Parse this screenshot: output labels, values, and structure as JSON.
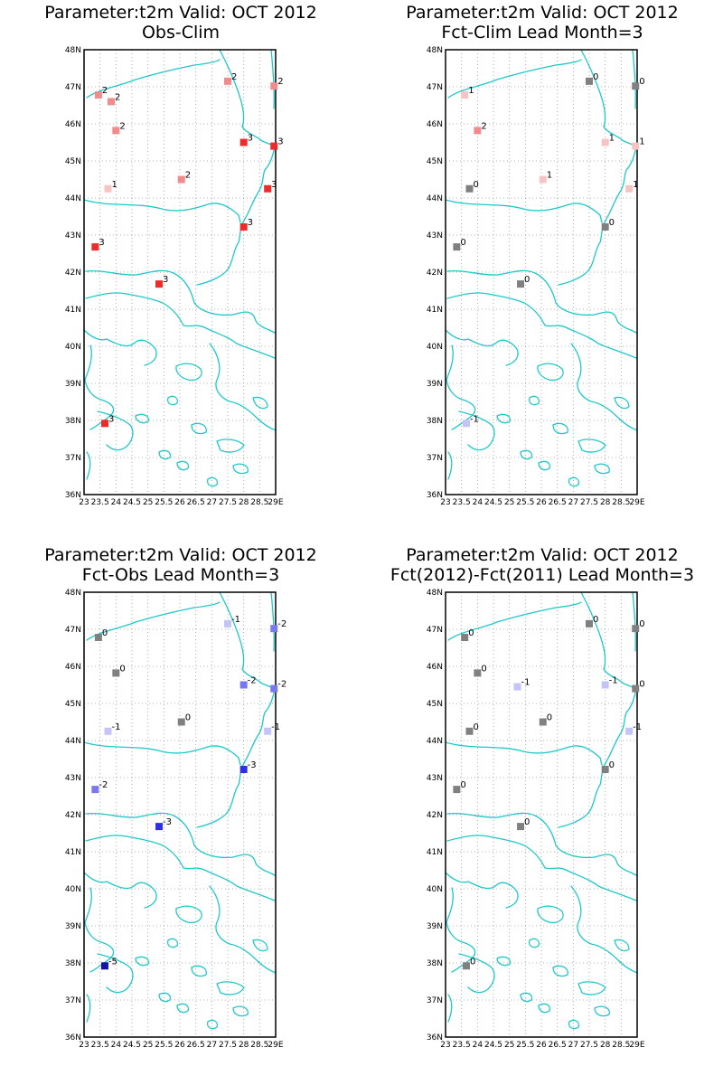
{
  "color_scale": {
    "-5": "#1414a0",
    "-3": "#2f2fe6",
    "-2": "#7878f0",
    "-1": "#c4c4f8",
    "0": "#808080",
    "1": "#f7c3c3",
    "2": "#f28c8c",
    "3": "#ee2a2a"
  },
  "chart_data": [
    {
      "type": "scatter",
      "title": "Parameter:t2m Valid: OCT 2012",
      "subtitle": "Obs-Clim",
      "x_ticks": [
        "23",
        "23.5",
        "24",
        "24.5",
        "25",
        "25.5",
        "26",
        "26.5",
        "27",
        "27.5",
        "28",
        "28.5",
        "29E"
      ],
      "y_ticks": [
        "48N",
        "47N",
        "46N",
        "45N",
        "44N",
        "43N",
        "42N",
        "41N",
        "40N",
        "39N",
        "38N",
        "37N",
        "36N"
      ],
      "xlim": [
        23,
        29
      ],
      "ylim": [
        36,
        48
      ],
      "grid": true,
      "points": [
        {
          "lon": 23.45,
          "lat": 46.78,
          "value": 2
        },
        {
          "lon": 23.85,
          "lat": 46.6,
          "value": 2
        },
        {
          "lon": 24.0,
          "lat": 45.82,
          "value": 2
        },
        {
          "lon": 23.75,
          "lat": 44.25,
          "value": 1
        },
        {
          "lon": 26.05,
          "lat": 44.5,
          "value": 2
        },
        {
          "lon": 27.5,
          "lat": 47.15,
          "value": 2
        },
        {
          "lon": 28.95,
          "lat": 47.02,
          "value": 2
        },
        {
          "lon": 28.0,
          "lat": 45.5,
          "value": 3
        },
        {
          "lon": 28.95,
          "lat": 45.4,
          "value": 3
        },
        {
          "lon": 28.75,
          "lat": 44.25,
          "value": 3
        },
        {
          "lon": 28.0,
          "lat": 43.22,
          "value": 3
        },
        {
          "lon": 23.35,
          "lat": 42.68,
          "value": 3
        },
        {
          "lon": 25.35,
          "lat": 41.68,
          "value": 3
        },
        {
          "lon": 23.65,
          "lat": 37.92,
          "value": 3
        }
      ]
    },
    {
      "type": "scatter",
      "title": "Parameter:t2m Valid: OCT 2012",
      "subtitle": "Fct-Clim Lead Month=3",
      "x_ticks": [
        "23",
        "23.5",
        "24",
        "24.5",
        "25",
        "25.5",
        "26",
        "26.5",
        "27",
        "27.5",
        "28",
        "28.5",
        "29E"
      ],
      "y_ticks": [
        "48N",
        "47N",
        "46N",
        "45N",
        "44N",
        "43N",
        "42N",
        "41N",
        "40N",
        "39N",
        "38N",
        "37N",
        "36N"
      ],
      "xlim": [
        23,
        29
      ],
      "ylim": [
        36,
        48
      ],
      "grid": true,
      "points": [
        {
          "lon": 23.6,
          "lat": 46.78,
          "value": 1
        },
        {
          "lon": 24.0,
          "lat": 45.82,
          "value": 2
        },
        {
          "lon": 23.75,
          "lat": 44.25,
          "value": 0
        },
        {
          "lon": 26.05,
          "lat": 44.5,
          "value": 1
        },
        {
          "lon": 27.5,
          "lat": 47.15,
          "value": 0
        },
        {
          "lon": 28.95,
          "lat": 47.02,
          "value": 0
        },
        {
          "lon": 28.0,
          "lat": 45.5,
          "value": 1
        },
        {
          "lon": 28.95,
          "lat": 45.4,
          "value": 1
        },
        {
          "lon": 28.75,
          "lat": 44.25,
          "value": 1
        },
        {
          "lon": 28.0,
          "lat": 43.22,
          "value": 0
        },
        {
          "lon": 23.35,
          "lat": 42.68,
          "value": 0
        },
        {
          "lon": 25.35,
          "lat": 41.68,
          "value": 0
        },
        {
          "lon": 23.65,
          "lat": 37.92,
          "value": -1
        }
      ]
    },
    {
      "type": "scatter",
      "title": "Parameter:t2m Valid: OCT 2012",
      "subtitle": "Fct-Obs Lead Month=3",
      "x_ticks": [
        "23",
        "23.5",
        "24",
        "24.5",
        "25",
        "25.5",
        "26",
        "26.5",
        "27",
        "27.5",
        "28",
        "28.5",
        "29E"
      ],
      "y_ticks": [
        "48N",
        "47N",
        "46N",
        "45N",
        "44N",
        "43N",
        "42N",
        "41N",
        "40N",
        "39N",
        "38N",
        "37N",
        "36N"
      ],
      "xlim": [
        23,
        29
      ],
      "ylim": [
        36,
        48
      ],
      "grid": true,
      "points": [
        {
          "lon": 23.45,
          "lat": 46.78,
          "value": 0
        },
        {
          "lon": 24.0,
          "lat": 45.82,
          "value": 0
        },
        {
          "lon": 23.75,
          "lat": 44.25,
          "value": -1
        },
        {
          "lon": 26.05,
          "lat": 44.5,
          "value": 0
        },
        {
          "lon": 27.5,
          "lat": 47.15,
          "value": -1
        },
        {
          "lon": 28.95,
          "lat": 47.02,
          "value": -2
        },
        {
          "lon": 28.0,
          "lat": 45.5,
          "value": -2
        },
        {
          "lon": 28.95,
          "lat": 45.4,
          "value": -2
        },
        {
          "lon": 28.75,
          "lat": 44.25,
          "value": -1
        },
        {
          "lon": 28.0,
          "lat": 43.22,
          "value": -3
        },
        {
          "lon": 23.35,
          "lat": 42.68,
          "value": -2
        },
        {
          "lon": 25.35,
          "lat": 41.68,
          "value": -3
        },
        {
          "lon": 23.65,
          "lat": 37.92,
          "value": -5
        }
      ]
    },
    {
      "type": "scatter",
      "title": "Parameter:t2m Valid: OCT 2012",
      "subtitle": "Fct(2012)-Fct(2011) Lead Month=3",
      "x_ticks": [
        "23",
        "23.5",
        "24",
        "24.5",
        "25",
        "25.5",
        "26",
        "26.5",
        "27",
        "27.5",
        "28",
        "28.5",
        "29E"
      ],
      "y_ticks": [
        "48N",
        "47N",
        "46N",
        "45N",
        "44N",
        "43N",
        "42N",
        "41N",
        "40N",
        "39N",
        "38N",
        "37N",
        "36N"
      ],
      "xlim": [
        23,
        29
      ],
      "ylim": [
        36,
        48
      ],
      "grid": true,
      "points": [
        {
          "lon": 23.6,
          "lat": 46.78,
          "value": 0
        },
        {
          "lon": 24.0,
          "lat": 45.82,
          "value": 0
        },
        {
          "lon": 23.75,
          "lat": 44.25,
          "value": 0
        },
        {
          "lon": 25.25,
          "lat": 45.45,
          "value": -1
        },
        {
          "lon": 26.05,
          "lat": 44.5,
          "value": 0
        },
        {
          "lon": 27.5,
          "lat": 47.15,
          "value": 0
        },
        {
          "lon": 28.95,
          "lat": 47.02,
          "value": 0
        },
        {
          "lon": 28.0,
          "lat": 45.5,
          "value": -1
        },
        {
          "lon": 28.95,
          "lat": 45.4,
          "value": 0
        },
        {
          "lon": 28.75,
          "lat": 44.25,
          "value": -1
        },
        {
          "lon": 28.0,
          "lat": 43.22,
          "value": 0
        },
        {
          "lon": 23.35,
          "lat": 42.68,
          "value": 0
        },
        {
          "lon": 25.35,
          "lat": 41.68,
          "value": 0
        },
        {
          "lon": 23.65,
          "lat": 37.92,
          "value": 0
        }
      ]
    }
  ]
}
